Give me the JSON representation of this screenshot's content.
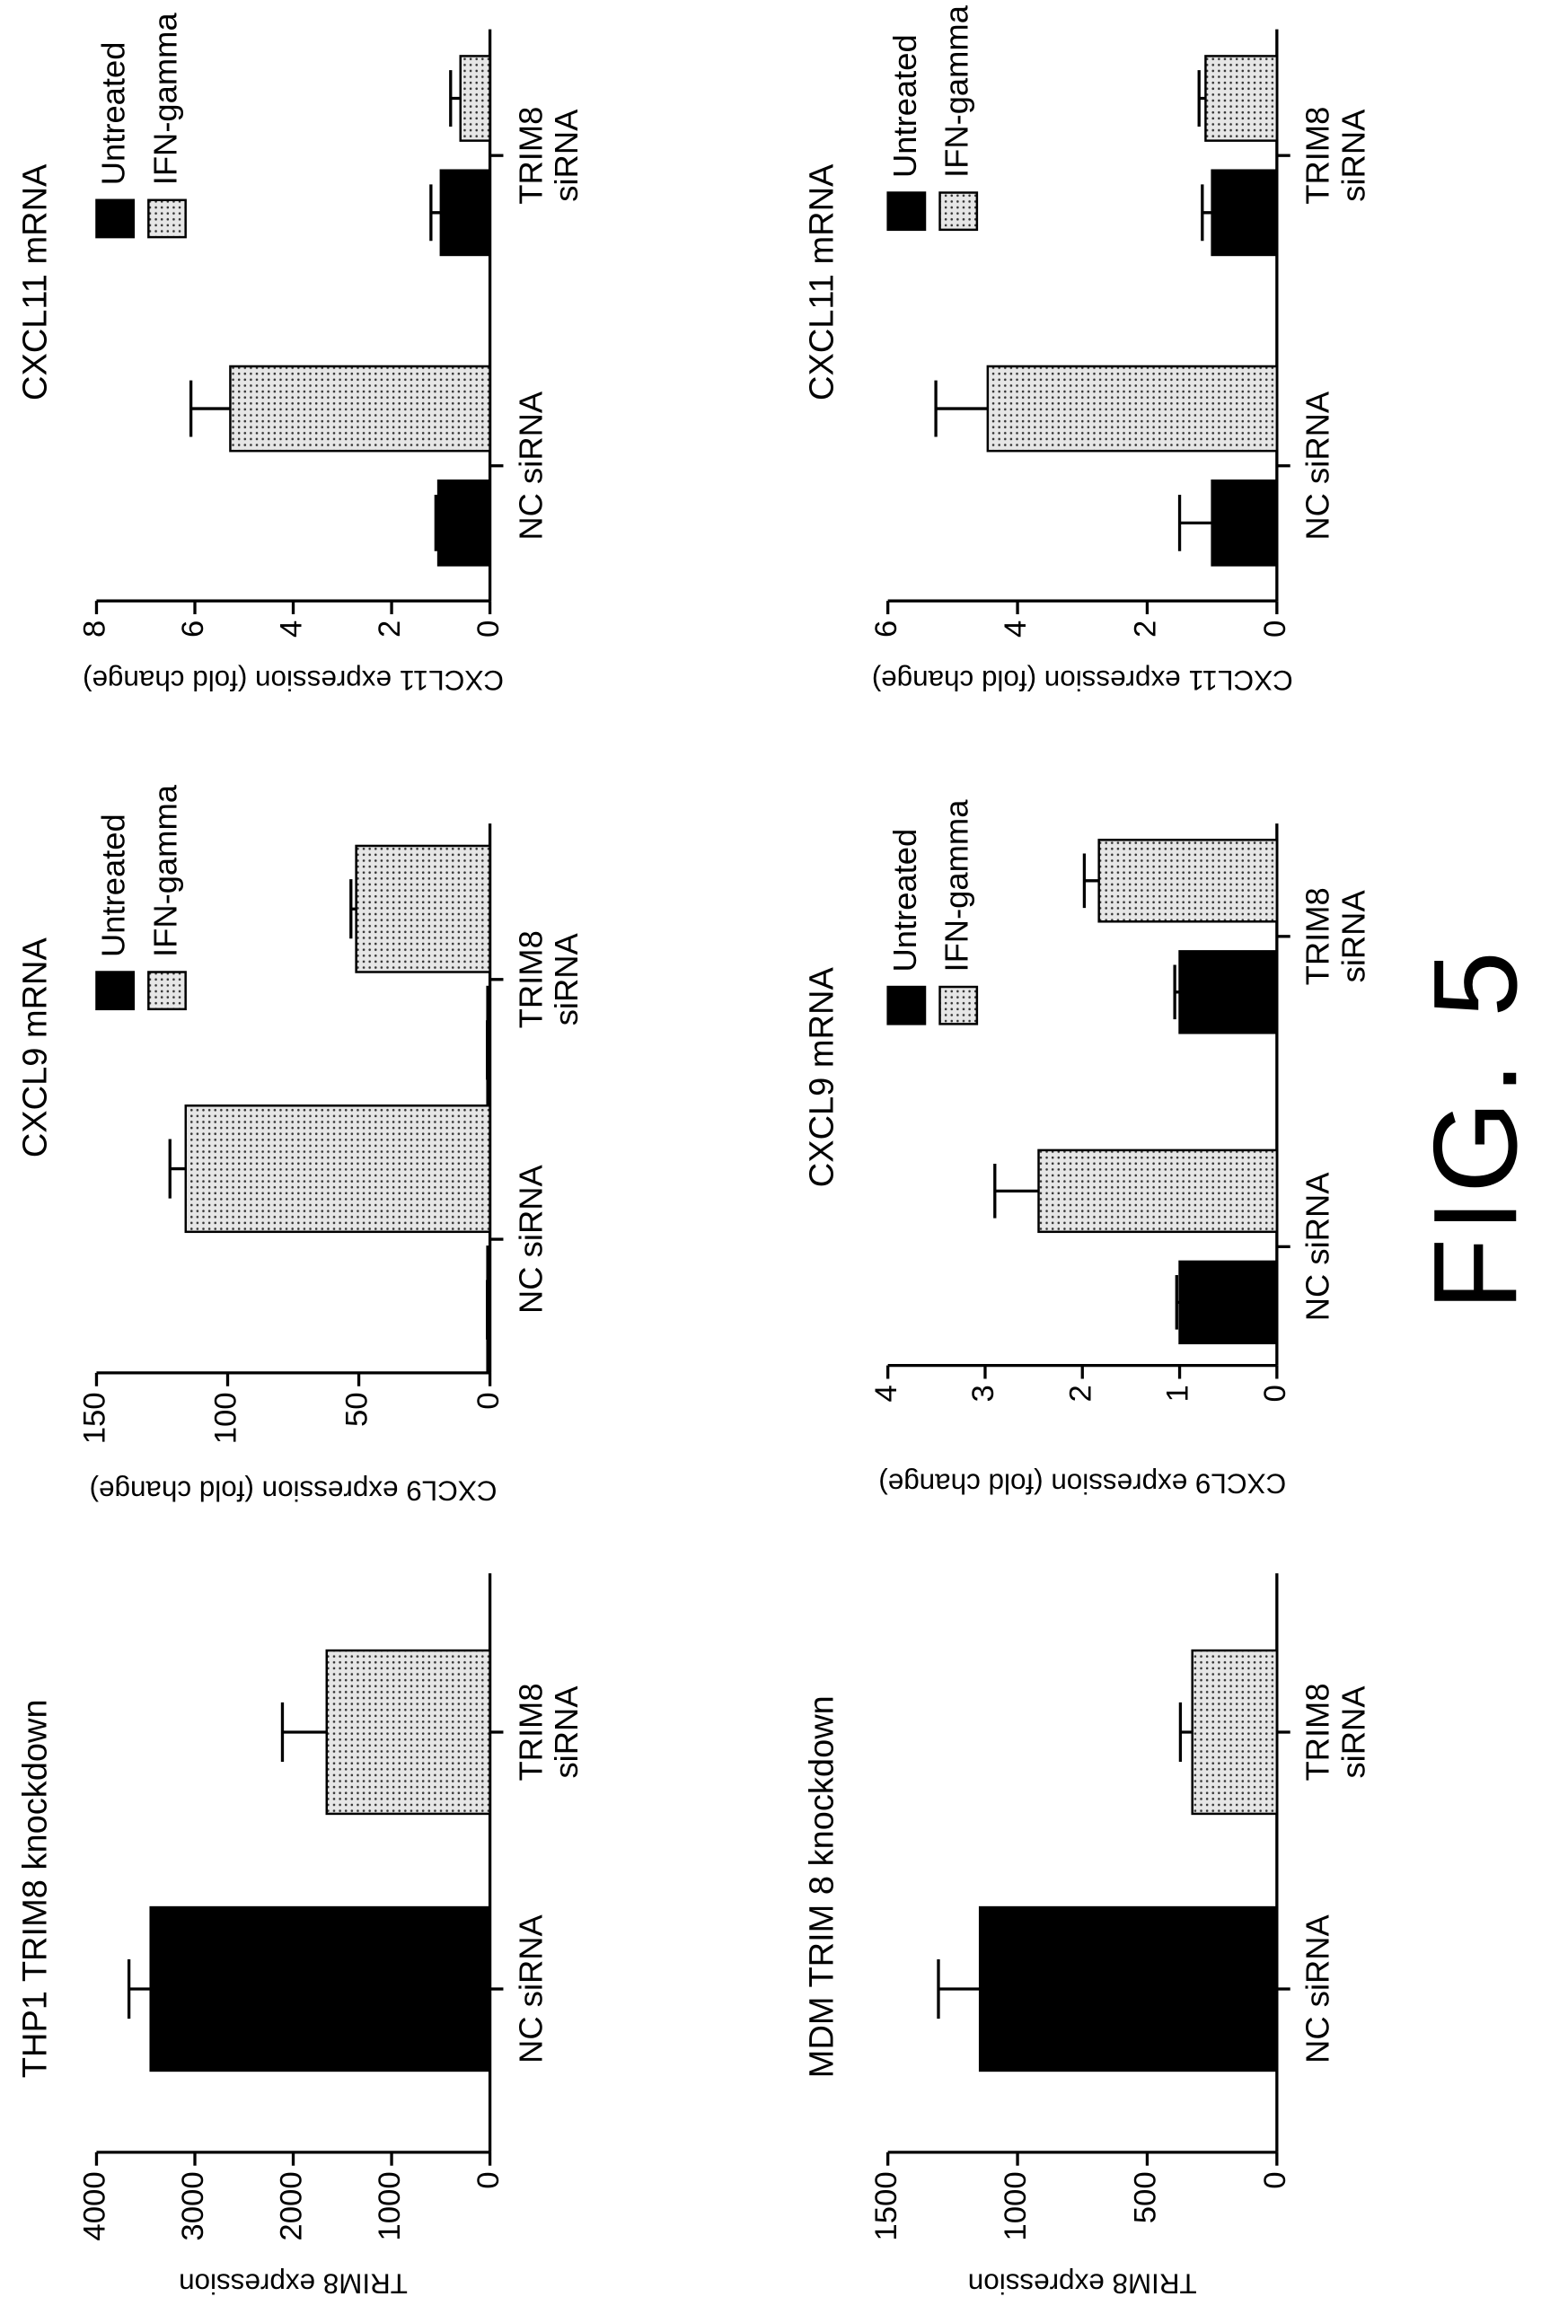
{
  "figure_label": "FIG. 5",
  "chart_data": [
    {
      "type": "bar",
      "title": "THP1 TRIM8 knockdown",
      "y_label": "TRIM8 expression",
      "categories": [
        "NC siRNA",
        "TRIM8\nsiRNA"
      ],
      "values": [
        3450,
        1660
      ],
      "errors": [
        220,
        450
      ],
      "colors": [
        "#000000",
        "#e6e6e6"
      ],
      "stipple": [
        false,
        true
      ],
      "ylim": [
        0,
        4000
      ],
      "yticks": [
        0,
        1000,
        2000,
        3000,
        4000
      ]
    },
    {
      "type": "bar",
      "title": "CXCL9 mRNA",
      "y_label": "CXCL9 expression (fold change)",
      "categories": [
        "NC siRNA",
        "TRIM8\nsiRNA"
      ],
      "series": [
        {
          "name": "Untreated",
          "color": "#000000",
          "stipple": false,
          "values": [
            1,
            1
          ],
          "errors": [
            0,
            0
          ]
        },
        {
          "name": "IFN-gamma",
          "color": "#e6e6e6",
          "stipple": true,
          "values": [
            116,
            51
          ],
          "errors": [
            6,
            2
          ]
        }
      ],
      "ylim": [
        0,
        150
      ],
      "yticks": [
        0,
        50,
        100,
        150
      ]
    },
    {
      "type": "bar",
      "title": "CXCL11 mRNA",
      "y_label": "CXCL11 expression (fold change)",
      "categories": [
        "NC siRNA",
        "TRIM8\nsiRNA"
      ],
      "series": [
        {
          "name": "Untreated",
          "color": "#000000",
          "stipple": false,
          "values": [
            1.05,
            1.0
          ],
          "errors": [
            0.05,
            0.2
          ]
        },
        {
          "name": "IFN-gamma",
          "color": "#e6e6e6",
          "stipple": true,
          "values": [
            5.28,
            0.6
          ],
          "errors": [
            0.8,
            0.2
          ]
        }
      ],
      "ylim": [
        0,
        8
      ],
      "yticks": [
        0,
        2,
        4,
        6,
        8
      ]
    },
    {
      "type": "bar",
      "title": "MDM TRIM 8 knockdown",
      "y_label": "TRIM8 expression",
      "categories": [
        "NC siRNA",
        "TRIM8\nsiRNA"
      ],
      "values": [
        1145,
        326
      ],
      "errors": [
        160,
        46
      ],
      "colors": [
        "#000000",
        "#e6e6e6"
      ],
      "stipple": [
        false,
        true
      ],
      "ylim": [
        0,
        1500
      ],
      "yticks": [
        0,
        500,
        1000,
        1500
      ]
    },
    {
      "type": "bar",
      "title": "CXCL9 mRNA",
      "y_label": "CXCL9 expression (fold change)",
      "categories": [
        "NC siRNA",
        "TRIM8\nsiRNA"
      ],
      "series": [
        {
          "name": "Untreated",
          "color": "#000000",
          "stipple": false,
          "values": [
            1.0,
            1.0
          ],
          "errors": [
            0.03,
            0.05
          ]
        },
        {
          "name": "IFN-gamma",
          "color": "#e6e6e6",
          "stipple": true,
          "values": [
            2.45,
            1.83
          ],
          "errors": [
            0.45,
            0.15
          ]
        }
      ],
      "ylim": [
        0,
        4
      ],
      "yticks": [
        0,
        1,
        2,
        3,
        4
      ]
    },
    {
      "type": "bar",
      "title": "CXCL11 mRNA",
      "y_label": "CXCL11 expression (fold change)",
      "categories": [
        "NC siRNA",
        "TRIM8\nsiRNA"
      ],
      "series": [
        {
          "name": "Untreated",
          "color": "#000000",
          "stipple": false,
          "values": [
            1.0,
            1.0
          ],
          "errors": [
            0.5,
            0.15
          ]
        },
        {
          "name": "IFN-gamma",
          "color": "#e6e6e6",
          "stipple": true,
          "values": [
            4.46,
            1.1
          ],
          "errors": [
            0.8,
            0.1
          ]
        }
      ],
      "ylim": [
        0,
        6
      ],
      "yticks": [
        0,
        2,
        4,
        6
      ]
    }
  ]
}
